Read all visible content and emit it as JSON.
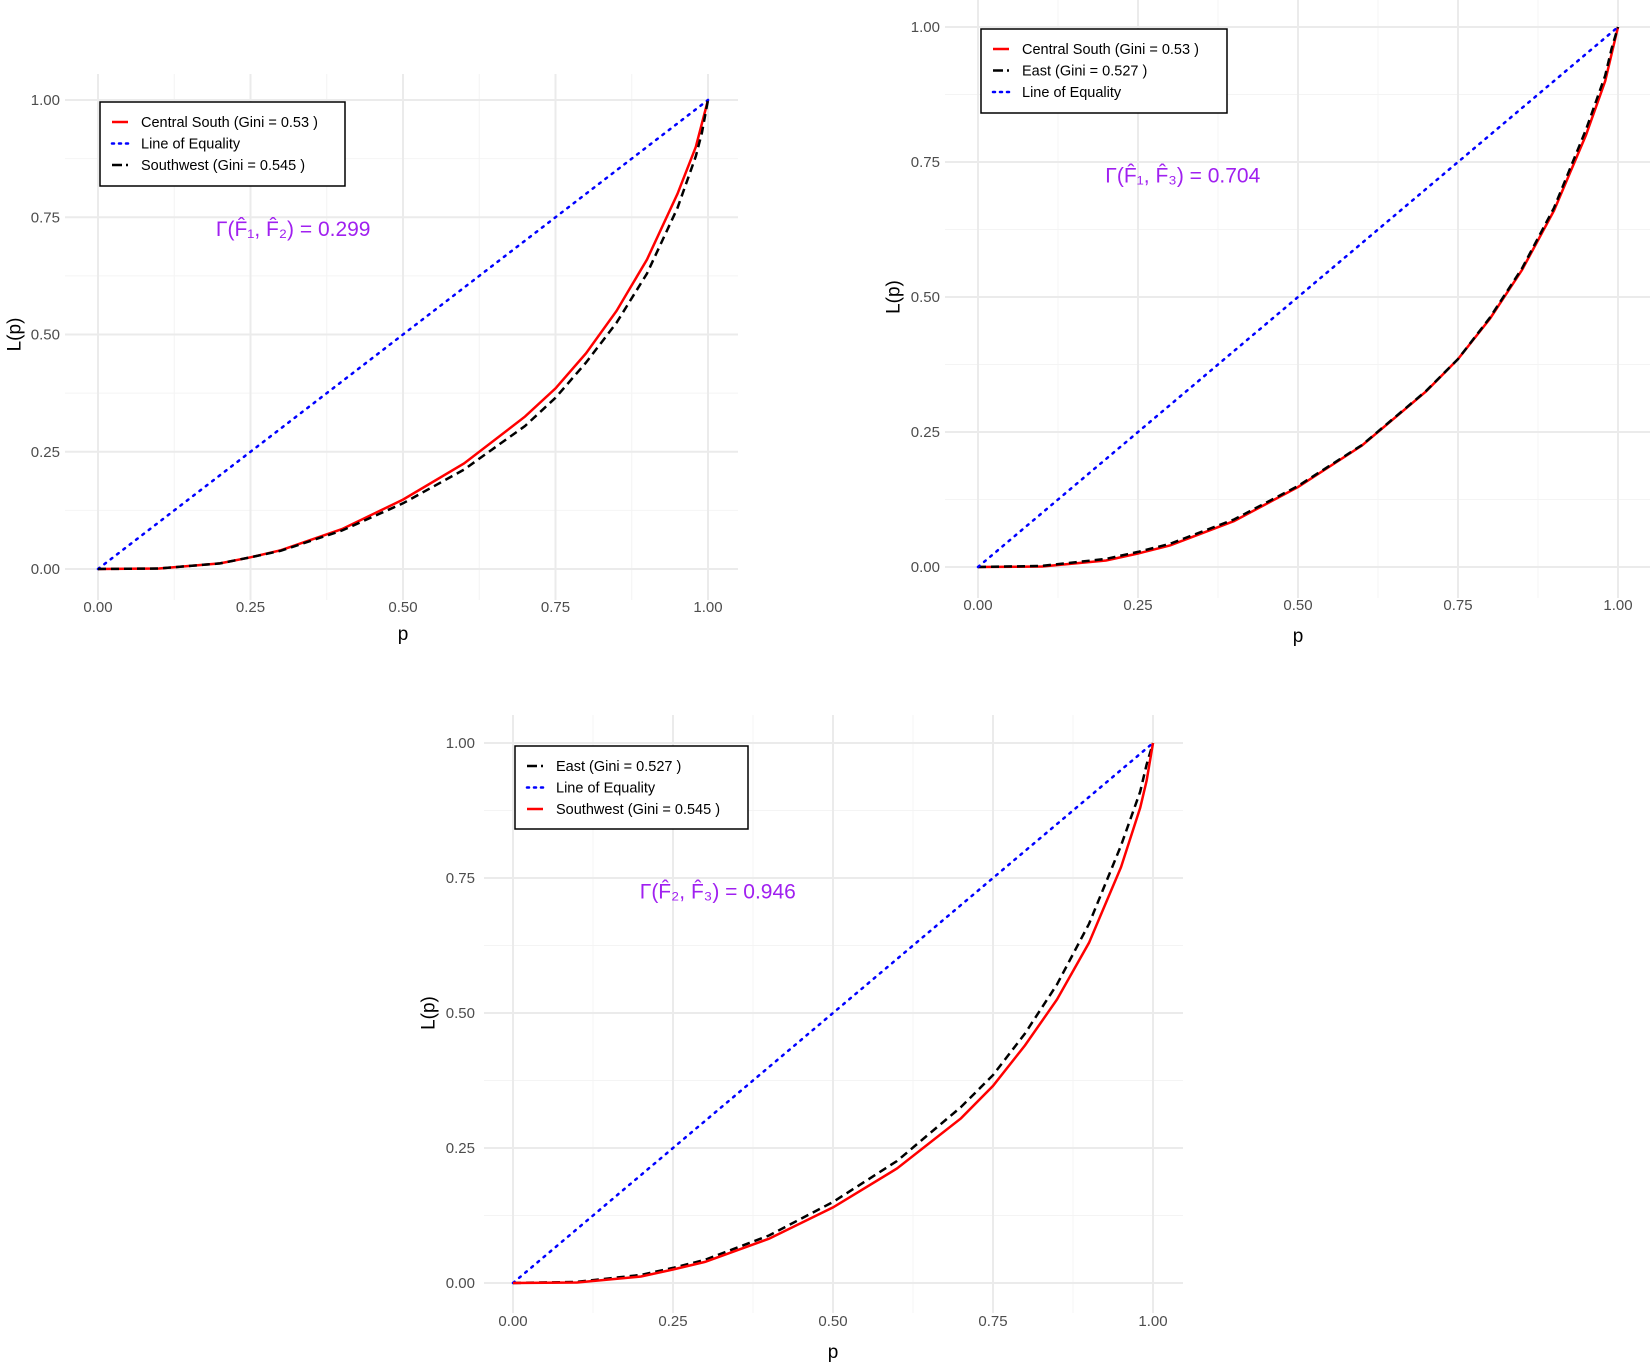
{
  "colors": {
    "central_south": "#ff0000",
    "southwest": "#000000",
    "east": "#000000",
    "equality": "#0000ff",
    "annotation": "#a020f0",
    "grid": "#ebebeb"
  },
  "chart_data": [
    {
      "type": "line",
      "xlabel": "p",
      "ylabel": "L(p)",
      "xlim": [
        0,
        1
      ],
      "ylim": [
        0,
        1
      ],
      "xticks": [
        "0.00",
        "0.25",
        "0.50",
        "0.75",
        "1.00"
      ],
      "yticks": [
        "0.00",
        "0.25",
        "0.50",
        "0.75",
        "1.00"
      ],
      "grid": true,
      "legend_position": "top-left",
      "annotation": {
        "text": "Γ(F̂₁, F̂₂) = 0.299",
        "x": 0.32,
        "y": 0.725
      },
      "legend": [
        "Central South (Gini = 0.53 )",
        "Line of Equality",
        "Southwest (Gini = 0.545 )"
      ],
      "series": [
        {
          "name": "Central South (Gini = 0.53 )",
          "style": "solid",
          "color": "#ff0000",
          "x": [
            0,
            0.1,
            0.2,
            0.25,
            0.3,
            0.4,
            0.5,
            0.6,
            0.7,
            0.75,
            0.8,
            0.85,
            0.9,
            0.95,
            0.98,
            0.99,
            1
          ],
          "y": [
            0,
            0.001,
            0.012,
            0.025,
            0.04,
            0.085,
            0.148,
            0.225,
            0.325,
            0.385,
            0.46,
            0.55,
            0.66,
            0.8,
            0.9,
            0.95,
            1
          ]
        },
        {
          "name": "Line of Equality",
          "style": "dotted",
          "color": "#0000ff",
          "x": [
            0,
            1
          ],
          "y": [
            0,
            1
          ]
        },
        {
          "name": "Southwest (Gini = 0.545 )",
          "style": "dashed",
          "color": "#000000",
          "x": [
            0,
            0.1,
            0.2,
            0.25,
            0.3,
            0.4,
            0.5,
            0.6,
            0.7,
            0.75,
            0.8,
            0.85,
            0.9,
            0.95,
            0.98,
            0.99,
            1
          ],
          "y": [
            0,
            0.001,
            0.012,
            0.025,
            0.039,
            0.082,
            0.14,
            0.212,
            0.305,
            0.365,
            0.44,
            0.525,
            0.63,
            0.77,
            0.88,
            0.93,
            1
          ]
        }
      ]
    },
    {
      "type": "line",
      "xlabel": "p",
      "ylabel": "L(p)",
      "xlim": [
        0,
        1
      ],
      "ylim": [
        0,
        1
      ],
      "xticks": [
        "0.00",
        "0.25",
        "0.50",
        "0.75",
        "1.00"
      ],
      "yticks": [
        "0.00",
        "0.25",
        "0.50",
        "0.75",
        "1.00"
      ],
      "grid": true,
      "legend_position": "top-left",
      "annotation": {
        "text": "Γ(F̂₁, F̂₃) = 0.704",
        "x": 0.32,
        "y": 0.725
      },
      "legend": [
        "Central South (Gini = 0.53 )",
        "East (Gini = 0.527 )",
        "Line of Equality"
      ],
      "series": [
        {
          "name": "Central South (Gini = 0.53 )",
          "style": "solid",
          "color": "#ff0000",
          "x": [
            0,
            0.1,
            0.2,
            0.25,
            0.3,
            0.4,
            0.5,
            0.6,
            0.7,
            0.75,
            0.8,
            0.85,
            0.9,
            0.95,
            0.98,
            0.99,
            1
          ],
          "y": [
            0,
            0.001,
            0.012,
            0.025,
            0.04,
            0.085,
            0.148,
            0.225,
            0.325,
            0.385,
            0.46,
            0.55,
            0.66,
            0.8,
            0.9,
            0.95,
            1
          ]
        },
        {
          "name": "East (Gini = 0.527 )",
          "style": "dashed",
          "color": "#000000",
          "x": [
            0,
            0.1,
            0.2,
            0.25,
            0.3,
            0.4,
            0.5,
            0.6,
            0.7,
            0.75,
            0.8,
            0.85,
            0.9,
            0.95,
            0.98,
            0.99,
            1
          ],
          "y": [
            0,
            0.002,
            0.015,
            0.028,
            0.043,
            0.088,
            0.15,
            0.226,
            0.326,
            0.385,
            0.462,
            0.553,
            0.665,
            0.81,
            0.91,
            0.96,
            1
          ]
        },
        {
          "name": "Line of Equality",
          "style": "dotted",
          "color": "#0000ff",
          "x": [
            0,
            1
          ],
          "y": [
            0,
            1
          ]
        }
      ]
    },
    {
      "type": "line",
      "xlabel": "p",
      "ylabel": "L(p)",
      "xlim": [
        0,
        1
      ],
      "ylim": [
        0,
        1
      ],
      "xticks": [
        "0.00",
        "0.25",
        "0.50",
        "0.75",
        "1.00"
      ],
      "yticks": [
        "0.00",
        "0.25",
        "0.50",
        "0.75",
        "1.00"
      ],
      "grid": true,
      "legend_position": "top-left",
      "annotation": {
        "text": "Γ(F̂₂, F̂₃) = 0.946",
        "x": 0.32,
        "y": 0.725
      },
      "legend": [
        "East (Gini = 0.527 )",
        "Line of Equality",
        "Southwest (Gini = 0.545 )"
      ],
      "series": [
        {
          "name": "East (Gini = 0.527 )",
          "style": "dashed",
          "color": "#000000",
          "x": [
            0,
            0.1,
            0.2,
            0.25,
            0.3,
            0.4,
            0.5,
            0.6,
            0.7,
            0.75,
            0.8,
            0.85,
            0.9,
            0.95,
            0.98,
            0.99,
            1
          ],
          "y": [
            0,
            0.002,
            0.015,
            0.028,
            0.043,
            0.088,
            0.15,
            0.226,
            0.326,
            0.385,
            0.462,
            0.553,
            0.665,
            0.81,
            0.91,
            0.96,
            1
          ]
        },
        {
          "name": "Line of Equality",
          "style": "dotted",
          "color": "#0000ff",
          "x": [
            0,
            1
          ],
          "y": [
            0,
            1
          ]
        },
        {
          "name": "Southwest (Gini = 0.545 )",
          "style": "solid",
          "color": "#ff0000",
          "x": [
            0,
            0.1,
            0.2,
            0.25,
            0.3,
            0.4,
            0.5,
            0.6,
            0.7,
            0.75,
            0.8,
            0.85,
            0.9,
            0.95,
            0.98,
            0.99,
            1
          ],
          "y": [
            0,
            0.001,
            0.012,
            0.025,
            0.039,
            0.082,
            0.14,
            0.212,
            0.305,
            0.365,
            0.44,
            0.525,
            0.63,
            0.77,
            0.88,
            0.93,
            1
          ]
        }
      ]
    }
  ]
}
